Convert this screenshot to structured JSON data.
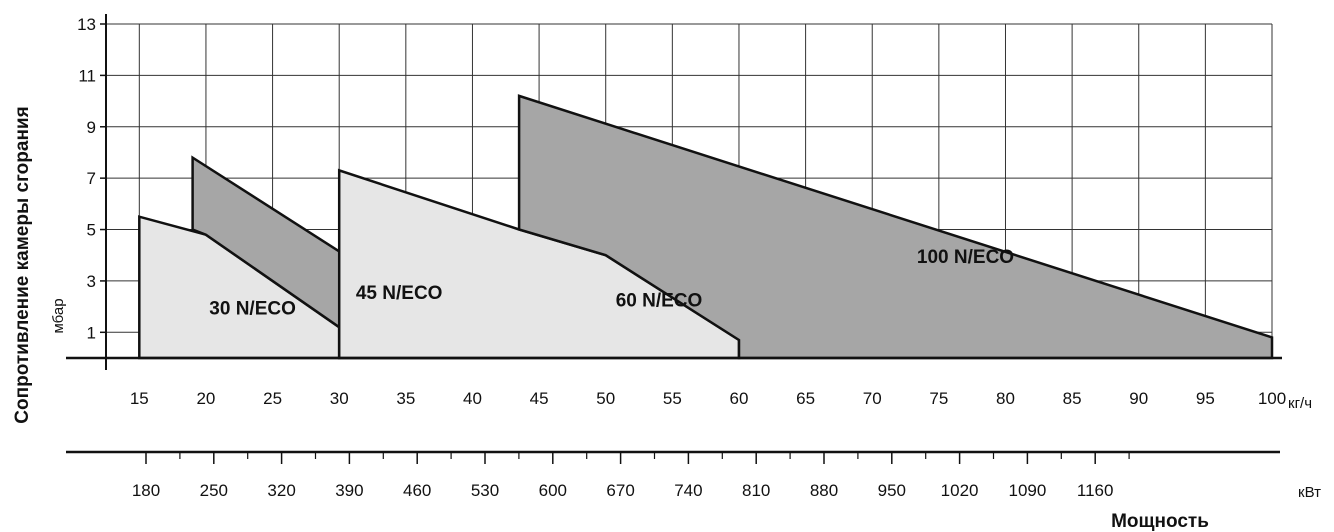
{
  "chart_data": {
    "type": "area",
    "ylabel": "Сопротивление камеры сгорания",
    "yunit": "мбар",
    "xunit": "кг/ч",
    "x2unit": "кВт",
    "x2label": "Мощность",
    "ylim": [
      0,
      13
    ],
    "xlim": [
      12.5,
      100
    ],
    "grid": true,
    "y_ticks": [
      "1",
      "3",
      "5",
      "7",
      "9",
      "11",
      "13"
    ],
    "x_ticks": [
      "15",
      "20",
      "25",
      "30",
      "35",
      "40",
      "45",
      "50",
      "55",
      "60",
      "65",
      "70",
      "75",
      "80",
      "85",
      "90",
      "95",
      "100"
    ],
    "x2_ticks": [
      "180",
      "250",
      "320",
      "390",
      "460",
      "530",
      "600",
      "670",
      "740",
      "810",
      "880",
      "950",
      "1020",
      "1090",
      "1160"
    ],
    "series": [
      {
        "name": "30 N/ECO",
        "fill": "#e6e6e6",
        "points": [
          [
            15,
            0
          ],
          [
            15,
            5.5
          ],
          [
            20,
            4.8
          ],
          [
            30,
            1.2
          ],
          [
            30,
            0
          ]
        ]
      },
      {
        "name": "45 N/ECO",
        "fill": "#a6a6a6",
        "points": [
          [
            19,
            5
          ],
          [
            19,
            7.8
          ],
          [
            42.5,
            0
          ],
          [
            30,
            0
          ],
          [
            30,
            1.2
          ],
          [
            20,
            4.8
          ]
        ]
      },
      {
        "name": "60 N/ECO",
        "fill": "#e6e6e6",
        "points": [
          [
            30,
            0
          ],
          [
            30,
            4.3
          ],
          [
            30,
            7.3
          ],
          [
            43.5,
            5
          ],
          [
            50,
            4
          ],
          [
            60,
            0.7
          ],
          [
            60,
            0
          ]
        ]
      },
      {
        "name": "100 N/ECO",
        "fill": "#a6a6a6",
        "points": [
          [
            43.5,
            5
          ],
          [
            43.5,
            10.2
          ],
          [
            100,
            0.8
          ],
          [
            100,
            0
          ],
          [
            60,
            0
          ],
          [
            60,
            0.7
          ],
          [
            50,
            4
          ]
        ]
      }
    ]
  }
}
